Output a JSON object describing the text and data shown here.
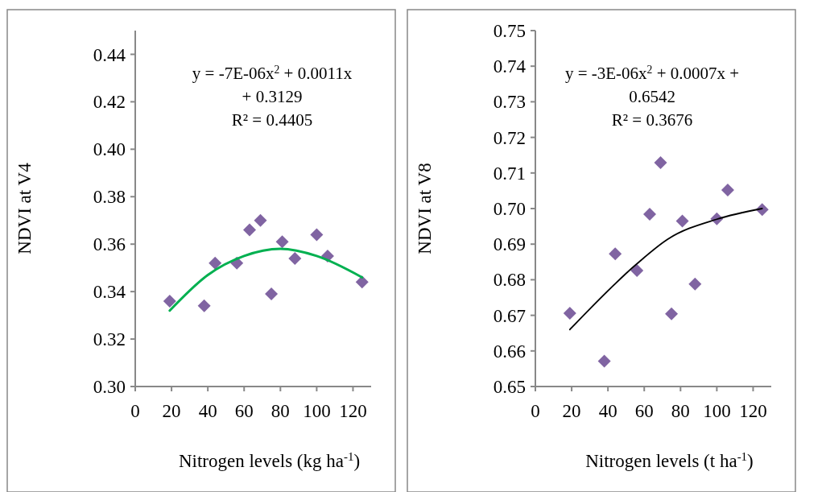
{
  "chart_data": [
    {
      "type": "scatter",
      "xlabel": "Nitrogen levels (kg ha$^{-1}$)",
      "ylabel": "NDVI at V4",
      "x": [
        19,
        38,
        44,
        56,
        63,
        69,
        75,
        81,
        88,
        100,
        106,
        125
      ],
      "xlim": [
        0,
        130
      ],
      "xticks": [
        0,
        20,
        40,
        60,
        80,
        100,
        120
      ],
      "ylim": [
        0.3,
        0.45
      ],
      "yticks": [
        {
          "value": 0.3,
          "label": "0.30"
        },
        0.32,
        0.34,
        0.36,
        0.38,
        {
          "value": 0.4,
          "label": "0.40"
        },
        0.42,
        0.44
      ],
      "series": [
        {
          "color": "#8064a2",
          "marker": "diamond",
          "values": [
            0.336,
            0.334,
            0.352,
            0.352,
            0.366,
            0.37,
            0.339,
            0.361,
            0.354,
            0.364,
            0.355,
            0.344
          ]
        },
        {
          "type": "line",
          "color": "#00b050",
          "x": [
            19,
            40,
            60,
            80,
            100,
            125
          ],
          "values": [
            0.332,
            0.347,
            0.355,
            0.358,
            0.355,
            0.346
          ]
        }
      ],
      "annotations": [
        "y = -7E-06x$^{2}$ + 0.0011x",
        "+ 0.3129",
        "R² = 0.4405"
      ]
    },
    {
      "type": "scatter",
      "xlabel": "Nitrogen levels (t ha$^{-1}$)",
      "ylabel": "NDVI at V8",
      "x": [
        19,
        38,
        44,
        56,
        63,
        69,
        75,
        81,
        88,
        100,
        106,
        125
      ],
      "xlim": [
        0,
        130
      ],
      "xticks": [
        0,
        20,
        40,
        60,
        80,
        100,
        120
      ],
      "ylim": [
        0.65,
        0.75
      ],
      "yticks": [
        0.65,
        0.66,
        0.67,
        0.68,
        0.69,
        {
          "value": 0.7,
          "label": "0.70"
        },
        0.71,
        0.72,
        0.73,
        0.74,
        0.75
      ],
      "series": [
        {
          "color": "#8064a2",
          "marker": "diamond",
          "values": [
            0.6706,
            0.6571,
            0.6873,
            0.6826,
            0.6984,
            0.7129,
            0.6704,
            0.6965,
            0.6788,
            0.6971,
            0.7052,
            0.6997
          ]
        },
        {
          "type": "line",
          "color": "#000000",
          "x": [
            19,
            56,
            73,
            100,
            125
          ],
          "values": [
            0.666,
            0.6845,
            0.6914,
            0.697,
            0.7
          ]
        }
      ],
      "annotations": [
        "y = -3E-06x$^{2}$ + 0.0007x +",
        "0.6542",
        "R² = 0.3676"
      ]
    }
  ]
}
